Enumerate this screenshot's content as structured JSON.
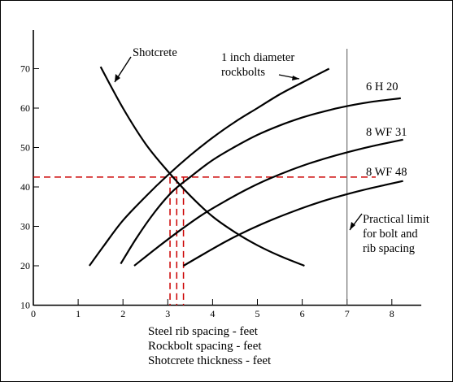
{
  "chart_data": {
    "type": "line",
    "xlabel_lines": [
      "Steel rib spacing - feet",
      "Rockbolt spacing - feet",
      "Shotcrete thickness - feet"
    ],
    "ylabel": "",
    "xlim": [
      0,
      8.75
    ],
    "ylim": [
      10,
      76
    ],
    "x_ticks": [
      0,
      1,
      2,
      3,
      4,
      5,
      6,
      7,
      8
    ],
    "y_ticks": [
      10,
      20,
      30,
      40,
      50,
      60,
      70
    ],
    "grid": false,
    "series": [
      {
        "name": "1 inch diameter rockbolts",
        "x": [
          1.25,
          1.6,
          2.0,
          2.5,
          3.0,
          3.5,
          4.0,
          4.5,
          5.0,
          5.5,
          6.0,
          6.6
        ],
        "y": [
          20,
          25.5,
          31.5,
          37.5,
          43,
          48,
          52.5,
          56.5,
          60,
          63.5,
          66.5,
          70
        ]
      },
      {
        "name": "6 H 20",
        "x": [
          1.95,
          2.3,
          2.7,
          3.1,
          3.5,
          4.0,
          4.5,
          5.0,
          5.5,
          6.0,
          6.5,
          7.0,
          7.5,
          8.2
        ],
        "y": [
          20.5,
          27,
          33.5,
          38.8,
          42.5,
          46.8,
          50.2,
          53.2,
          55.6,
          57.6,
          59.2,
          60.5,
          61.5,
          62.5
        ]
      },
      {
        "name": "8 WF 31",
        "x": [
          2.25,
          2.75,
          3.25,
          3.75,
          4.25,
          4.75,
          5.25,
          5.75,
          6.25,
          6.75,
          7.25,
          7.75,
          8.25
        ],
        "y": [
          20,
          24.5,
          28.8,
          32.8,
          36.2,
          39.3,
          42,
          44.3,
          46.3,
          48,
          49.5,
          50.8,
          52
        ]
      },
      {
        "name": "8 WF 48",
        "x": [
          3.35,
          3.85,
          4.35,
          4.85,
          5.35,
          5.85,
          6.35,
          6.85,
          7.35,
          7.85,
          8.25
        ],
        "y": [
          20,
          23.3,
          26.5,
          29.3,
          31.8,
          34,
          36,
          37.7,
          39.2,
          40.5,
          41.5
        ]
      },
      {
        "name": "Shotcrete",
        "x": [
          1.5,
          2.0,
          2.5,
          3.0,
          3.5,
          4.0,
          4.5,
          5.0,
          5.5,
          6.05
        ],
        "y": [
          70.5,
          60,
          51,
          44,
          37.8,
          32.5,
          28.5,
          25.2,
          22.5,
          20
        ]
      }
    ],
    "reference_lines": {
      "horizontal_y": 42.5,
      "vertical_x": [
        3.05,
        3.2,
        3.35
      ],
      "practical_limit_x": 7.0
    },
    "annotations": {
      "shotcrete": "Shotcrete",
      "rockbolts_line1": "1 inch diameter",
      "rockbolts_line2": "rockbolts",
      "h20": "6 H 20",
      "wf31": "8 WF 31",
      "wf48": "8 WF 48",
      "limit_line1": "Practical limit",
      "limit_line2": "for bolt and",
      "limit_line3": "rib spacing"
    },
    "colors": {
      "curve": "#000000",
      "reference": "#cc0000",
      "limit": "#555555"
    }
  }
}
